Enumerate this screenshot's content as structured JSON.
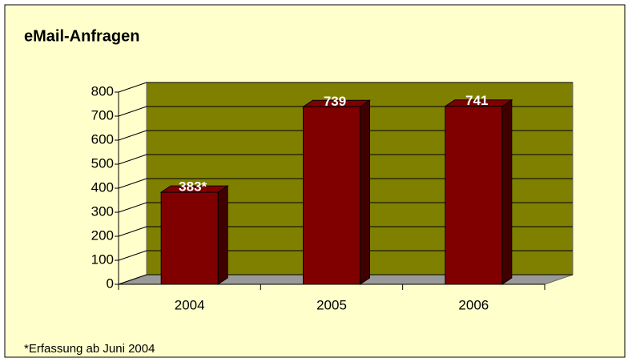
{
  "chart_data": {
    "type": "bar3d",
    "title": "eMail-Anfragen",
    "categories": [
      "2004",
      "2005",
      "2006"
    ],
    "values": [
      383,
      739,
      741
    ],
    "value_labels": [
      "383*",
      "739",
      "741"
    ],
    "color": "#800000",
    "side_color": "#400000",
    "wall_color": "#808000",
    "floor_color": "#999999",
    "background": "#ffffcc",
    "ylim": [
      0,
      800
    ],
    "yticks": [
      0,
      100,
      200,
      300,
      400,
      500,
      600,
      700,
      800
    ],
    "grid": true,
    "annotation": "*Erfassung ab Juni 2004"
  }
}
